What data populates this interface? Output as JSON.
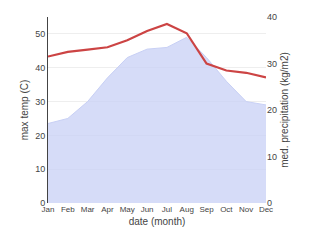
{
  "chart_data": {
    "type": "line",
    "xlabel": "date (month)",
    "ylabel": "max temp (C)",
    "y2label": "med. precipitation (kg/m2)",
    "categories": [
      "Jan",
      "Feb",
      "Mar",
      "Apr",
      "May",
      "Jun",
      "Jul",
      "Aug",
      "Sep",
      "Oct",
      "Nov",
      "Dec"
    ],
    "series": [
      {
        "type": "area",
        "color": "#c8d0f5",
        "values": [
          23.5,
          25.0,
          30.0,
          37.0,
          43.0,
          45.5,
          46.0,
          49.0,
          43.0,
          36.0,
          30.0,
          29.0
        ]
      },
      {
        "type": "line",
        "color": "#cc4444",
        "axis": "y2",
        "values": [
          31.5,
          32.5,
          33.0,
          33.5,
          35.0,
          37.0,
          38.5,
          36.5,
          30.0,
          28.5,
          28.0,
          27.0
        ]
      }
    ],
    "ylim": [
      0,
      55
    ],
    "yticks": [
      0,
      10,
      20,
      30,
      40,
      50
    ],
    "y2lim": [
      0,
      40
    ],
    "y2ticks": [
      0,
      10,
      20,
      30,
      40
    ],
    "grid": true
  }
}
